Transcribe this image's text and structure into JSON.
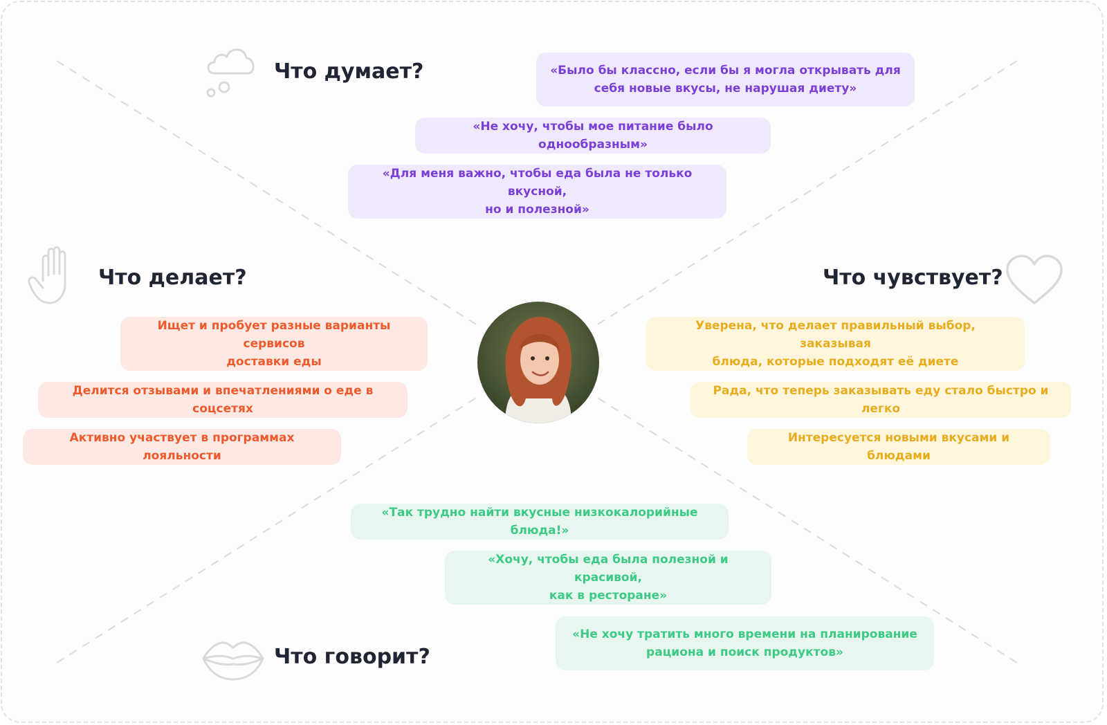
{
  "sections": {
    "thinks": {
      "title": "Что думает?",
      "items": [
        "«Было бы классно, если бы я могла открывать для\nсебя новые вкусы, не нарушая диету»",
        "«Не хочу, чтобы мое питание было однообразным»",
        "«Для меня важно, чтобы еда была не только вкусной,\nно и полезной»"
      ]
    },
    "does": {
      "title": "Что делает?",
      "items": [
        "Ищет и пробует разные варианты сервисов\nдоставки еды",
        "Делится отзывами и впечатлениями о еде в соцсетях",
        "Активно участвует в программах лояльности"
      ]
    },
    "feels": {
      "title": "Что чувствует?",
      "items": [
        "Уверена, что делает правильный выбор, заказывая\nблюда, которые подходят её диете",
        "Рада, что теперь заказывать еду стало быстро и легко",
        "Интересуется новыми вкусами и блюдами"
      ]
    },
    "says": {
      "title": "Что говорит?",
      "items": [
        "«Так трудно найти вкусные низкокалорийные блюда!»",
        "«Хочу, чтобы еда была полезной и красивой,\nкак в ресторане»",
        "«Не хочу тратить много времени на планирование\nрациона и поиск продуктов»"
      ]
    }
  },
  "icons": {
    "thinks": "thought-cloud-icon",
    "does": "raised-hand-icon",
    "feels": "heart-icon",
    "says": "lips-icon"
  },
  "colors": {
    "thinks_bg": "#efe9fb",
    "thinks_text": "#7a3fd6",
    "does_bg": "#fde9e4",
    "does_text": "#ee5a2c",
    "feels_bg": "#fdf6dc",
    "feels_text": "#e7ad1e",
    "says_bg": "#e7f7ef",
    "says_text": "#3dc986",
    "heading": "#1f2533"
  }
}
